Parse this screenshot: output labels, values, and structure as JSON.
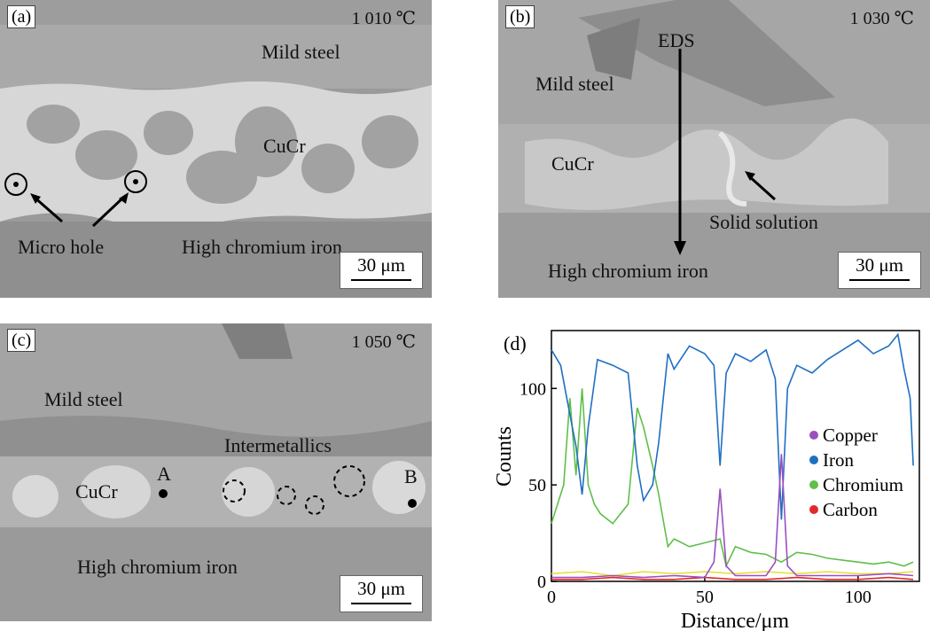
{
  "panels": {
    "a": {
      "tag": "(a)",
      "temp": "1 010 ℃",
      "labels": {
        "mild_steel": "Mild steel",
        "cucr": "CuCr",
        "micro_hole": "Micro hole",
        "hci": "High chromium iron"
      },
      "scale": "30 μm"
    },
    "b": {
      "tag": "(b)",
      "temp": "1 030 ℃",
      "labels": {
        "eds": "EDS",
        "mild_steel": "Mild steel",
        "cucr": "CuCr",
        "solid_solution": "Solid solution",
        "hci": "High chromium iron"
      },
      "scale": "30 μm"
    },
    "c": {
      "tag": "(c)",
      "temp": "1 050 ℃",
      "labels": {
        "mild_steel": "Mild steel",
        "intermetallics": "Intermetallics",
        "cucr": "CuCr",
        "a": "A",
        "b": "B",
        "hci": "High chromium iron"
      },
      "scale": "30 μm"
    },
    "d": {
      "tag": "(d)"
    }
  },
  "chart_data": {
    "type": "line",
    "xlabel": "Distance/μm",
    "ylabel": "Counts",
    "xlim": [
      0,
      120
    ],
    "ylim": [
      0,
      130
    ],
    "xticks": [
      0,
      50,
      100
    ],
    "yticks": [
      0,
      50,
      100
    ],
    "legend_position": "right",
    "series": [
      {
        "name": "Copper",
        "color": "#9b4fc0",
        "x": [
          0,
          10,
          20,
          30,
          40,
          50,
          53,
          55,
          57,
          60,
          70,
          73,
          75,
          77,
          80,
          90,
          100,
          110,
          118
        ],
        "y": [
          2,
          2,
          3,
          2,
          3,
          2,
          10,
          48,
          8,
          3,
          3,
          10,
          66,
          8,
          3,
          3,
          3,
          4,
          3
        ]
      },
      {
        "name": "Iron",
        "color": "#1f6fc1",
        "x": [
          0,
          3,
          5,
          8,
          10,
          12,
          15,
          20,
          25,
          28,
          30,
          33,
          35,
          38,
          40,
          45,
          50,
          53,
          55,
          57,
          60,
          65,
          70,
          73,
          75,
          77,
          80,
          85,
          90,
          95,
          100,
          105,
          110,
          113,
          115,
          117,
          118
        ],
        "y": [
          120,
          112,
          95,
          70,
          45,
          80,
          115,
          112,
          108,
          60,
          42,
          50,
          72,
          118,
          110,
          122,
          118,
          112,
          60,
          108,
          118,
          114,
          120,
          105,
          32,
          100,
          112,
          108,
          115,
          120,
          125,
          118,
          122,
          128,
          110,
          95,
          60
        ]
      },
      {
        "name": "Chromium",
        "color": "#5fbf4a",
        "x": [
          0,
          2,
          4,
          6,
          8,
          10,
          12,
          14,
          16,
          20,
          25,
          28,
          30,
          33,
          35,
          38,
          40,
          45,
          50,
          55,
          57,
          60,
          65,
          70,
          75,
          80,
          85,
          90,
          95,
          100,
          105,
          110,
          115,
          118
        ],
        "y": [
          30,
          40,
          50,
          95,
          55,
          100,
          50,
          40,
          35,
          30,
          40,
          90,
          80,
          60,
          45,
          18,
          22,
          18,
          20,
          22,
          8,
          18,
          15,
          14,
          10,
          15,
          14,
          12,
          11,
          10,
          9,
          10,
          8,
          10
        ]
      },
      {
        "name": "Carbon",
        "color": "#e02a2a",
        "x": [
          0,
          10,
          20,
          30,
          40,
          50,
          60,
          70,
          80,
          90,
          100,
          110,
          118
        ],
        "y": [
          1,
          1,
          2,
          1,
          1,
          2,
          1,
          1,
          2,
          1,
          1,
          2,
          1
        ]
      }
    ],
    "extra_line": {
      "color": "#e8e03a",
      "x": [
        0,
        10,
        20,
        30,
        40,
        50,
        60,
        70,
        80,
        90,
        100,
        110,
        118
      ],
      "y": [
        4,
        5,
        3,
        5,
        4,
        5,
        4,
        5,
        4,
        5,
        4,
        4,
        5
      ]
    }
  }
}
